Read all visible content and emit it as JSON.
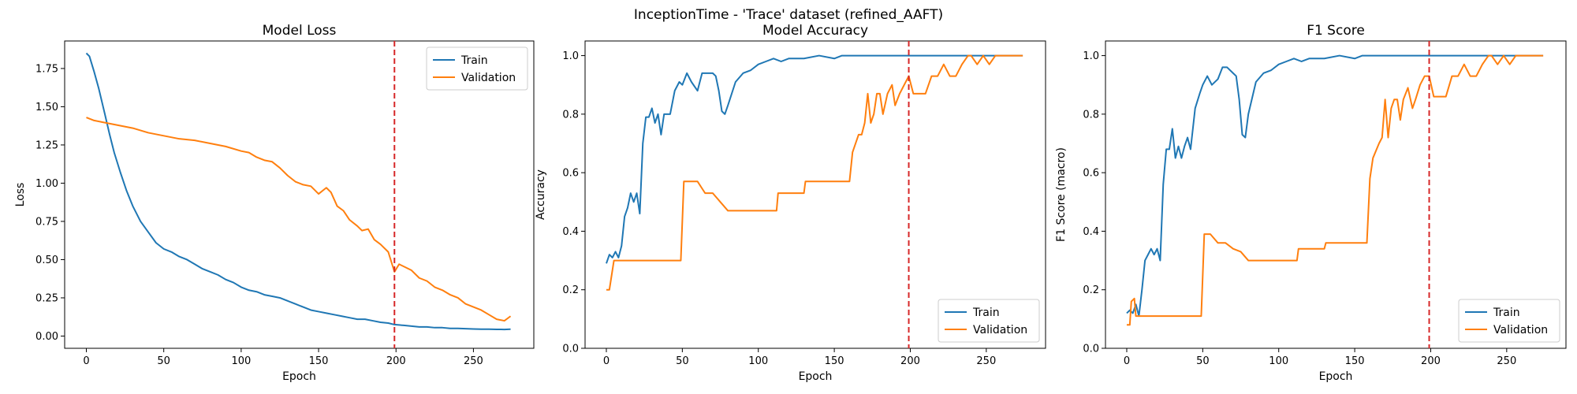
{
  "figure": {
    "suptitle": "InceptionTime - 'Trace' dataset (refined_AAFT)"
  },
  "colors": {
    "train": "#1f77b4",
    "validation": "#ff7f0e",
    "marker": "#d62728"
  },
  "chart_data": [
    {
      "type": "line",
      "title": "Model Loss",
      "xlabel": "Epoch",
      "ylabel": "Loss",
      "xlim": [
        -14,
        289
      ],
      "ylim": [
        -0.08,
        1.93
      ],
      "xticks": [
        0,
        50,
        100,
        150,
        200,
        250
      ],
      "yticks": [
        0.0,
        0.25,
        0.5,
        0.75,
        1.0,
        1.25,
        1.5,
        1.75
      ],
      "ytick_labels": [
        "0.00",
        "0.25",
        "0.50",
        "0.75",
        "1.00",
        "1.25",
        "1.50",
        "1.75"
      ],
      "legend_position": "top-right",
      "vline": 199,
      "series": [
        {
          "name": "Train",
          "x": [
            0,
            2,
            5,
            8,
            12,
            15,
            18,
            22,
            26,
            30,
            35,
            40,
            45,
            50,
            55,
            60,
            65,
            70,
            75,
            80,
            85,
            90,
            95,
            100,
            105,
            110,
            115,
            120,
            125,
            130,
            135,
            140,
            145,
            150,
            155,
            160,
            165,
            170,
            175,
            180,
            185,
            190,
            195,
            199,
            205,
            210,
            215,
            220,
            225,
            230,
            235,
            240,
            245,
            250,
            255,
            260,
            265,
            270,
            274
          ],
          "values": [
            1.85,
            1.83,
            1.73,
            1.62,
            1.45,
            1.32,
            1.2,
            1.07,
            0.95,
            0.85,
            0.75,
            0.68,
            0.61,
            0.57,
            0.55,
            0.52,
            0.5,
            0.47,
            0.44,
            0.42,
            0.4,
            0.37,
            0.35,
            0.32,
            0.3,
            0.29,
            0.27,
            0.26,
            0.25,
            0.23,
            0.21,
            0.19,
            0.17,
            0.16,
            0.15,
            0.14,
            0.13,
            0.12,
            0.11,
            0.11,
            0.1,
            0.09,
            0.085,
            0.075,
            0.07,
            0.065,
            0.06,
            0.06,
            0.055,
            0.055,
            0.05,
            0.05,
            0.048,
            0.046,
            0.045,
            0.045,
            0.044,
            0.043,
            0.045
          ]
        },
        {
          "name": "Validation",
          "x": [
            0,
            5,
            10,
            20,
            30,
            40,
            50,
            60,
            70,
            80,
            90,
            100,
            105,
            110,
            115,
            120,
            125,
            130,
            135,
            140,
            145,
            150,
            155,
            158,
            162,
            166,
            170,
            175,
            178,
            182,
            186,
            190,
            195,
            199,
            202,
            206,
            210,
            215,
            220,
            225,
            230,
            235,
            240,
            245,
            250,
            255,
            260,
            265,
            270,
            274
          ],
          "values": [
            1.43,
            1.41,
            1.4,
            1.38,
            1.36,
            1.33,
            1.31,
            1.29,
            1.28,
            1.26,
            1.24,
            1.21,
            1.2,
            1.17,
            1.15,
            1.14,
            1.1,
            1.05,
            1.01,
            0.99,
            0.98,
            0.93,
            0.97,
            0.94,
            0.85,
            0.82,
            0.76,
            0.72,
            0.69,
            0.7,
            0.63,
            0.6,
            0.55,
            0.42,
            0.47,
            0.45,
            0.43,
            0.38,
            0.36,
            0.32,
            0.3,
            0.27,
            0.25,
            0.21,
            0.19,
            0.17,
            0.14,
            0.11,
            0.1,
            0.13
          ]
        }
      ]
    },
    {
      "type": "line",
      "title": "Model Accuracy",
      "xlabel": "Epoch",
      "ylabel": "Accuracy",
      "xlim": [
        -14,
        289
      ],
      "ylim": [
        0.0,
        1.05
      ],
      "xticks": [
        0,
        50,
        100,
        150,
        200,
        250
      ],
      "yticks": [
        0.0,
        0.2,
        0.4,
        0.6,
        0.8,
        1.0
      ],
      "ytick_labels": [
        "0.0",
        "0.2",
        "0.4",
        "0.6",
        "0.8",
        "1.0"
      ],
      "legend_position": "bottom-right",
      "vline": 199,
      "series": [
        {
          "name": "Train",
          "x": [
            0,
            2,
            4,
            6,
            8,
            10,
            12,
            14,
            16,
            18,
            20,
            22,
            24,
            26,
            28,
            30,
            32,
            34,
            36,
            38,
            40,
            42,
            45,
            48,
            50,
            53,
            56,
            60,
            63,
            66,
            70,
            72,
            74,
            76,
            78,
            80,
            85,
            90,
            95,
            100,
            105,
            110,
            115,
            120,
            130,
            140,
            150,
            155,
            160,
            200,
            240,
            274
          ],
          "values": [
            0.29,
            0.32,
            0.31,
            0.33,
            0.31,
            0.35,
            0.45,
            0.48,
            0.53,
            0.5,
            0.53,
            0.46,
            0.7,
            0.79,
            0.79,
            0.82,
            0.77,
            0.8,
            0.73,
            0.8,
            0.8,
            0.8,
            0.88,
            0.91,
            0.9,
            0.94,
            0.91,
            0.88,
            0.94,
            0.94,
            0.94,
            0.93,
            0.88,
            0.81,
            0.8,
            0.83,
            0.91,
            0.94,
            0.95,
            0.97,
            0.98,
            0.99,
            0.98,
            0.99,
            0.99,
            1.0,
            0.99,
            1.0,
            1.0,
            1.0,
            1.0,
            1.0
          ]
        },
        {
          "name": "Validation",
          "x": [
            0,
            2,
            5,
            10,
            20,
            30,
            40,
            49,
            51,
            55,
            60,
            65,
            70,
            75,
            80,
            85,
            90,
            100,
            112,
            113,
            130,
            131,
            150,
            160,
            162,
            166,
            168,
            170,
            172,
            174,
            176,
            178,
            180,
            182,
            185,
            188,
            190,
            193,
            196,
            199,
            202,
            206,
            210,
            214,
            218,
            222,
            226,
            230,
            234,
            238,
            240,
            244,
            248,
            252,
            256,
            260,
            274
          ],
          "values": [
            0.2,
            0.2,
            0.3,
            0.3,
            0.3,
            0.3,
            0.3,
            0.3,
            0.57,
            0.57,
            0.57,
            0.53,
            0.53,
            0.5,
            0.47,
            0.47,
            0.47,
            0.47,
            0.47,
            0.53,
            0.53,
            0.57,
            0.57,
            0.57,
            0.67,
            0.73,
            0.73,
            0.77,
            0.87,
            0.77,
            0.8,
            0.87,
            0.87,
            0.8,
            0.87,
            0.9,
            0.83,
            0.87,
            0.9,
            0.93,
            0.87,
            0.87,
            0.87,
            0.93,
            0.93,
            0.97,
            0.93,
            0.93,
            0.97,
            1.0,
            1.0,
            0.97,
            1.0,
            0.97,
            1.0,
            1.0,
            1.0
          ]
        }
      ]
    },
    {
      "type": "line",
      "title": "F1 Score",
      "xlabel": "Epoch",
      "ylabel": "F1 Score (macro)",
      "xlim": [
        -14,
        289
      ],
      "ylim": [
        0.0,
        1.05
      ],
      "xticks": [
        0,
        50,
        100,
        150,
        200,
        250
      ],
      "yticks": [
        0.0,
        0.2,
        0.4,
        0.6,
        0.8,
        1.0
      ],
      "ytick_labels": [
        "0.0",
        "0.2",
        "0.4",
        "0.6",
        "0.8",
        "1.0"
      ],
      "legend_position": "bottom-right",
      "vline": 199,
      "series": [
        {
          "name": "Train",
          "x": [
            0,
            2,
            4,
            6,
            8,
            10,
            12,
            14,
            16,
            18,
            20,
            22,
            24,
            26,
            28,
            30,
            32,
            34,
            36,
            38,
            40,
            42,
            45,
            48,
            50,
            53,
            56,
            60,
            63,
            66,
            70,
            72,
            74,
            76,
            78,
            80,
            85,
            90,
            95,
            100,
            105,
            110,
            115,
            120,
            130,
            140,
            150,
            155,
            160,
            200,
            240,
            274
          ],
          "values": [
            0.12,
            0.13,
            0.12,
            0.15,
            0.11,
            0.2,
            0.3,
            0.32,
            0.34,
            0.32,
            0.34,
            0.3,
            0.56,
            0.68,
            0.68,
            0.75,
            0.65,
            0.69,
            0.65,
            0.69,
            0.72,
            0.68,
            0.82,
            0.87,
            0.9,
            0.93,
            0.9,
            0.92,
            0.96,
            0.96,
            0.94,
            0.93,
            0.85,
            0.73,
            0.72,
            0.8,
            0.91,
            0.94,
            0.95,
            0.97,
            0.98,
            0.99,
            0.98,
            0.99,
            0.99,
            1.0,
            0.99,
            1.0,
            1.0,
            1.0,
            1.0,
            1.0
          ]
        },
        {
          "name": "Validation",
          "x": [
            0,
            2,
            3,
            5,
            6,
            8,
            10,
            20,
            30,
            40,
            49,
            51,
            55,
            60,
            65,
            70,
            75,
            80,
            85,
            90,
            100,
            112,
            113,
            130,
            131,
            150,
            158,
            160,
            162,
            166,
            168,
            170,
            172,
            174,
            176,
            178,
            180,
            182,
            185,
            188,
            190,
            193,
            196,
            199,
            202,
            206,
            210,
            214,
            218,
            222,
            226,
            230,
            234,
            238,
            240,
            244,
            248,
            252,
            256,
            260,
            274
          ],
          "values": [
            0.08,
            0.08,
            0.16,
            0.17,
            0.11,
            0.11,
            0.11,
            0.11,
            0.11,
            0.11,
            0.11,
            0.39,
            0.39,
            0.36,
            0.36,
            0.34,
            0.33,
            0.3,
            0.3,
            0.3,
            0.3,
            0.3,
            0.34,
            0.34,
            0.36,
            0.36,
            0.36,
            0.58,
            0.65,
            0.7,
            0.72,
            0.85,
            0.72,
            0.82,
            0.85,
            0.85,
            0.78,
            0.85,
            0.89,
            0.82,
            0.85,
            0.9,
            0.93,
            0.93,
            0.86,
            0.86,
            0.86,
            0.93,
            0.93,
            0.97,
            0.93,
            0.93,
            0.97,
            1.0,
            1.0,
            0.97,
            1.0,
            0.97,
            1.0,
            1.0,
            1.0
          ]
        }
      ]
    }
  ]
}
